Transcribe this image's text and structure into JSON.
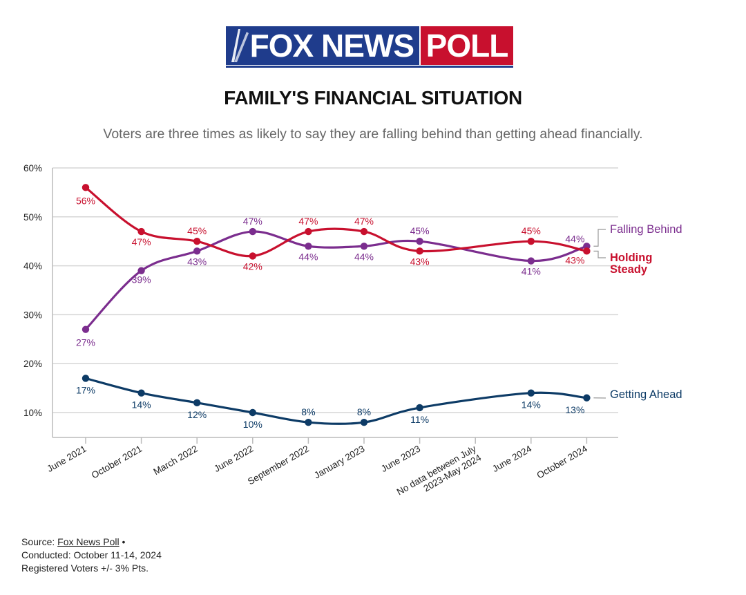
{
  "header": {
    "logo_fox": "FOX NEWS",
    "logo_poll": "POLL",
    "title": "FAMILY'S FINANCIAL SITUATION",
    "subtitle": "Voters are three times as likely to say they are falling behind than getting ahead financially."
  },
  "footer": {
    "source_prefix": "Source:",
    "source_link": "Fox News Poll",
    "source_suffix": " •",
    "conducted": "Conducted: October 11-14, 2024",
    "sample": "Registered Voters +/- 3% Pts."
  },
  "colors": {
    "falling_behind": "#7b2d8e",
    "holding_steady": "#c8102e",
    "getting_ahead": "#0d3b66",
    "grid": "#d6d6d6",
    "axis": "#bbbbbb"
  },
  "chart_data": {
    "type": "line",
    "title": "FAMILY'S FINANCIAL SITUATION",
    "xlabel": "",
    "ylabel": "",
    "ylim": [
      5,
      60
    ],
    "yticks": [
      10,
      20,
      30,
      40,
      50,
      60
    ],
    "ytick_labels": [
      "10%",
      "20%",
      "30%",
      "40%",
      "50%",
      "60%"
    ],
    "grid": true,
    "legend": "right-inline",
    "categories": [
      "June 2021",
      "October 2021",
      "March 2022",
      "June 2022",
      "September 2022",
      "January 2023",
      "June 2023",
      "No data between July 2023-May 2024",
      "June 2024",
      "October 2024"
    ],
    "series": [
      {
        "name": "Falling Behind",
        "key": "falling_behind",
        "values": [
          27,
          39,
          43,
          47,
          44,
          44,
          45,
          null,
          41,
          44
        ]
      },
      {
        "name": "Holding Steady",
        "key": "holding_steady",
        "values": [
          56,
          47,
          45,
          42,
          47,
          47,
          43,
          null,
          45,
          43
        ]
      },
      {
        "name": "Getting Ahead",
        "key": "getting_ahead",
        "values": [
          17,
          14,
          12,
          10,
          8,
          8,
          11,
          null,
          14,
          13
        ]
      }
    ]
  }
}
